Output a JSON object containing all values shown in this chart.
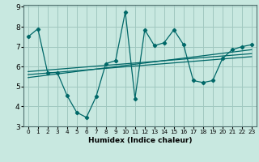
{
  "xlabel": "Humidex (Indice chaleur)",
  "bg_color": "#c8e8e0",
  "grid_color": "#a0c8c0",
  "line_color": "#006868",
  "xlim": [
    -0.5,
    23.5
  ],
  "ylim": [
    3,
    9.1
  ],
  "yticks": [
    3,
    4,
    5,
    6,
    7,
    8,
    9
  ],
  "xticks": [
    0,
    1,
    2,
    3,
    4,
    5,
    6,
    7,
    8,
    9,
    10,
    11,
    12,
    13,
    14,
    15,
    16,
    17,
    18,
    19,
    20,
    21,
    22,
    23
  ],
  "main_x": [
    0,
    1,
    2,
    3,
    4,
    5,
    6,
    7,
    8,
    9,
    10,
    11,
    12,
    13,
    14,
    15,
    16,
    17,
    18,
    19,
    20,
    21,
    22,
    23
  ],
  "main_y": [
    7.5,
    7.9,
    5.7,
    5.7,
    4.55,
    3.7,
    3.45,
    4.5,
    6.15,
    6.3,
    8.75,
    4.4,
    7.85,
    7.05,
    7.2,
    7.85,
    7.1,
    5.3,
    5.2,
    5.3,
    6.4,
    6.85,
    7.0,
    7.1
  ],
  "line1_x": [
    0,
    23
  ],
  "line1_y": [
    5.6,
    6.5
  ],
  "line2_x": [
    0,
    23
  ],
  "line2_y": [
    5.45,
    6.85
  ],
  "line3_x": [
    0,
    23
  ],
  "line3_y": [
    5.75,
    6.65
  ],
  "xlabel_fontsize": 6.5,
  "tick_fontsize_x": 5.2,
  "tick_fontsize_y": 6.5
}
